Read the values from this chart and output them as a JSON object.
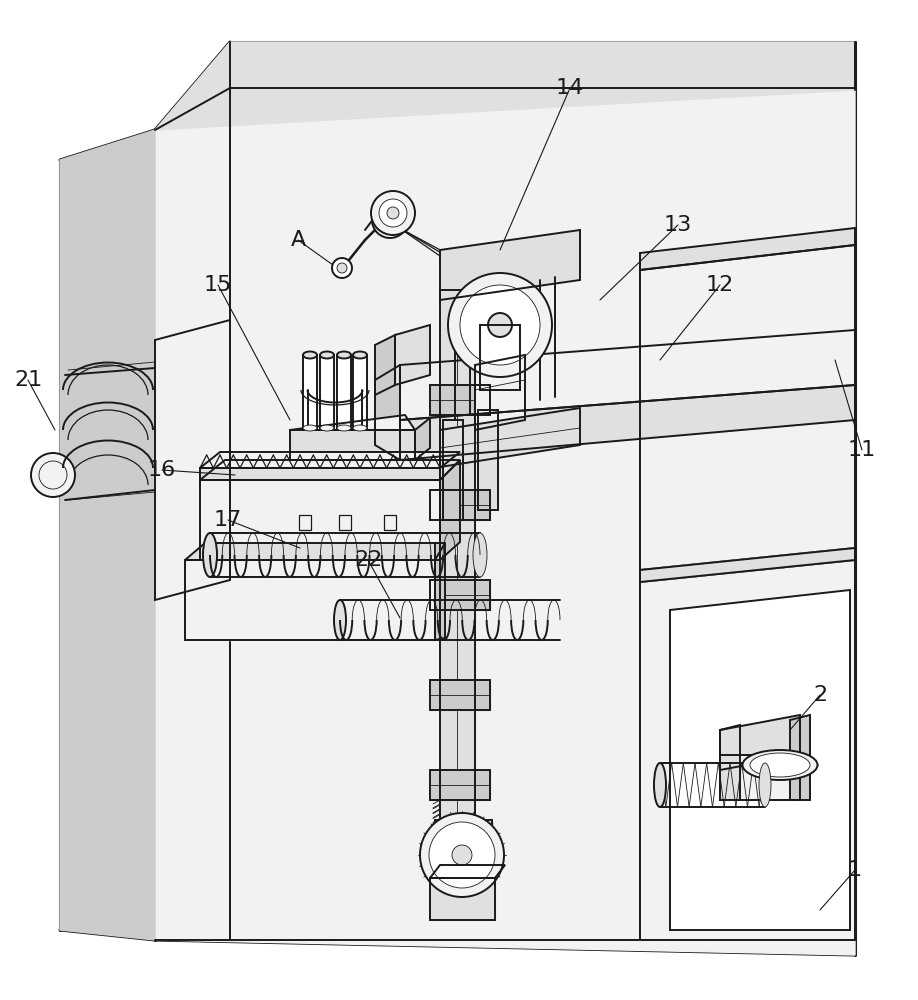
{
  "bg_color": "#ffffff",
  "line_color": "#1a1a1a",
  "lw_outer": 2.2,
  "lw_inner": 1.4,
  "lw_detail": 0.9,
  "lw_thin": 0.6,
  "figsize": [
    9.18,
    10.0
  ],
  "dpi": 100,
  "label_fontsize": 16,
  "fill_light": "#f2f2f2",
  "fill_mid": "#e0e0e0",
  "fill_dark": "#cccccc",
  "fill_white": "#ffffff"
}
